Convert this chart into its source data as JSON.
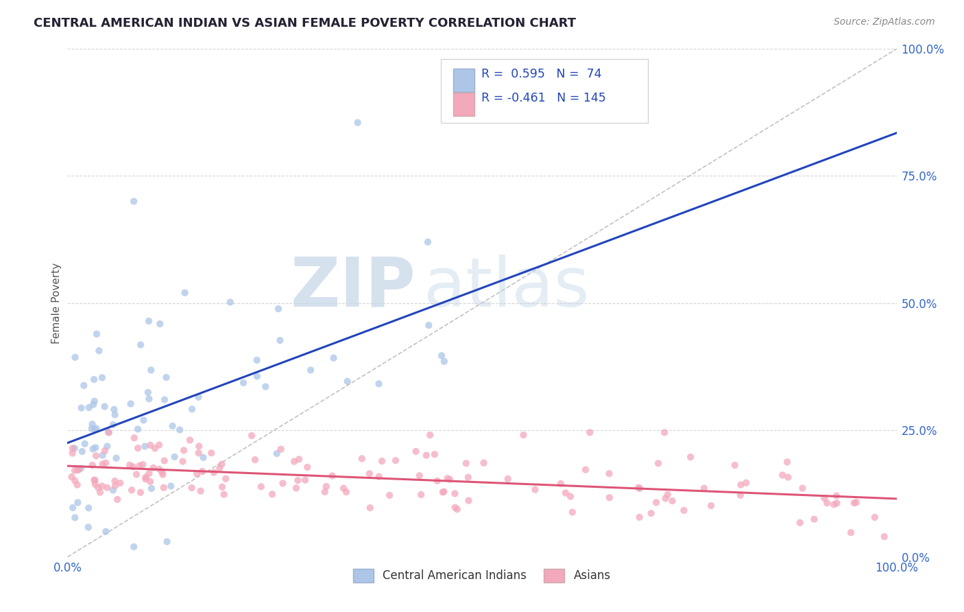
{
  "title": "CENTRAL AMERICAN INDIAN VS ASIAN FEMALE POVERTY CORRELATION CHART",
  "source": "Source: ZipAtlas.com",
  "ylabel": "Female Poverty",
  "legend_label_1": "Central American Indians",
  "legend_label_2": "Asians",
  "R1": 0.595,
  "N1": 74,
  "R2": -0.461,
  "N2": 145,
  "color_blue": "#adc6e8",
  "color_pink": "#f4a8bc",
  "line_blue": "#2244bb",
  "line_pink": "#dd5577",
  "line_ref": "#bbbbbb",
  "bg_color": "#ffffff",
  "grid_color": "#cccccc",
  "watermark_zip": "ZIP",
  "watermark_atlas": "atlas",
  "xlim": [
    0.0,
    1.0
  ],
  "ylim": [
    0.0,
    1.0
  ]
}
